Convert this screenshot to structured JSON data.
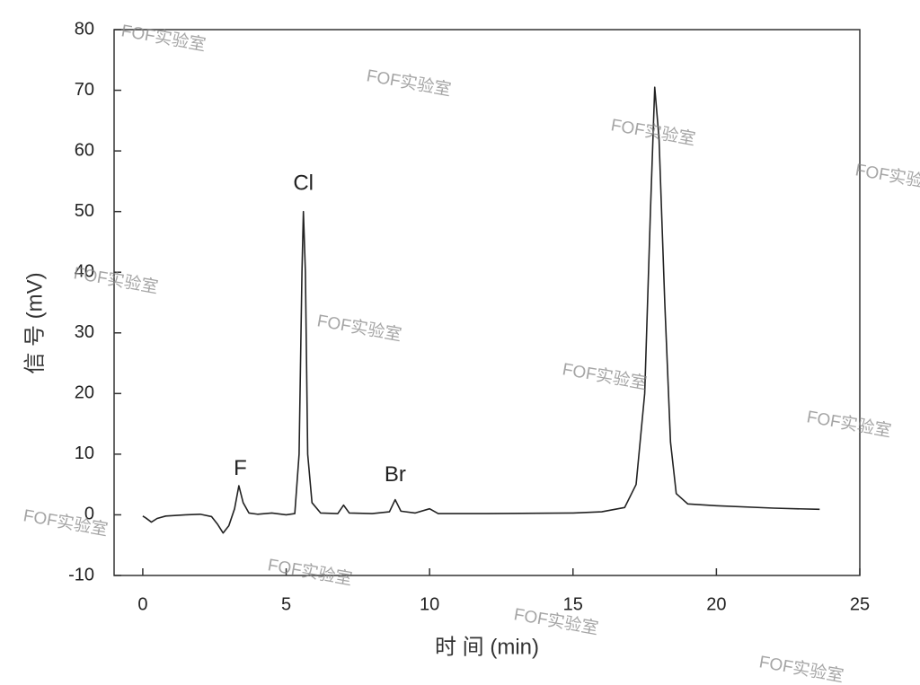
{
  "chart_data": {
    "type": "line",
    "xlabel": "时 间 (min)",
    "ylabel": "信 号 (mV)",
    "xlim": [
      -1,
      25
    ],
    "ylim": [
      -10,
      80
    ],
    "xticks": [
      0,
      5,
      10,
      15,
      20,
      25
    ],
    "yticks": [
      -10,
      0,
      10,
      20,
      30,
      40,
      50,
      60,
      70,
      80
    ],
    "color": "#222222",
    "x": [
      0,
      0.1,
      0.3,
      0.5,
      0.8,
      1.5,
      2.0,
      2.4,
      2.6,
      2.8,
      3.0,
      3.2,
      3.35,
      3.5,
      3.7,
      4.0,
      4.5,
      5.0,
      5.3,
      5.45,
      5.55,
      5.6,
      5.67,
      5.75,
      5.9,
      6.2,
      6.8,
      7.0,
      7.2,
      8.0,
      8.6,
      8.8,
      9.0,
      9.5,
      10.0,
      10.3,
      12,
      15,
      16,
      16.8,
      17.2,
      17.5,
      17.7,
      17.85,
      18.0,
      18.2,
      18.4,
      18.6,
      19,
      20,
      22,
      23.6
    ],
    "values": [
      -0.2,
      -0.5,
      -1.2,
      -0.6,
      -0.2,
      0.0,
      0.1,
      -0.3,
      -1.5,
      -3.0,
      -1.8,
      1.0,
      4.8,
      2.0,
      0.3,
      0.1,
      0.3,
      0.0,
      0.2,
      10,
      40,
      50,
      40,
      10,
      2,
      0.3,
      0.2,
      1.6,
      0.3,
      0.2,
      0.5,
      2.5,
      0.6,
      0.3,
      1.0,
      0.2,
      0.2,
      0.3,
      0.5,
      1.2,
      5,
      20,
      50,
      70.5,
      62,
      35,
      12,
      3.5,
      1.8,
      1.5,
      1.1,
      0.9
    ],
    "annotations": [
      {
        "text": "F",
        "x": 3.4,
        "y": 7.5
      },
      {
        "text": "Cl",
        "x": 5.6,
        "y": 54.5
      },
      {
        "text": "Br",
        "x": 8.8,
        "y": 6.5
      }
    ],
    "watermark": "FOF实验室"
  }
}
